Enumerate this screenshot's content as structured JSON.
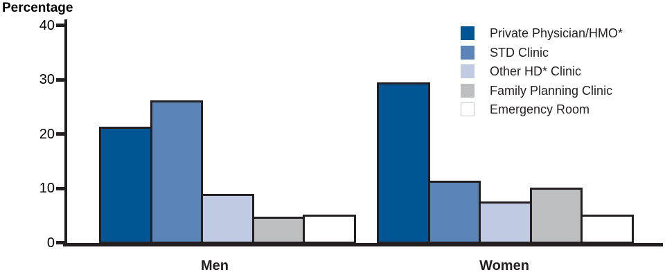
{
  "page": {
    "heading": "Percentage"
  },
  "chart_data": {
    "type": "bar",
    "title": "",
    "ylabel": "Percentage",
    "xlabel": "",
    "categories": [
      "Men",
      "Women"
    ],
    "series": [
      {
        "name": "Private Physician/HMO*",
        "color": "#005595",
        "values": [
          21.5,
          29.7
        ]
      },
      {
        "name": "STD Clinic",
        "color": "#5B84B8",
        "values": [
          26.4,
          11.6
        ]
      },
      {
        "name": "Other HD* Clinic",
        "color": "#C0CBE3",
        "values": [
          9.2,
          7.8
        ]
      },
      {
        "name": "Family Planning Clinic",
        "color": "#BCBEC0",
        "values": [
          5.0,
          10.3
        ]
      },
      {
        "name": "Emergency Room",
        "color": "#FFFFFF",
        "values": [
          5.4,
          5.3
        ]
      }
    ],
    "ylim": [
      0,
      40
    ],
    "yticks": [
      0,
      10,
      20,
      30,
      40
    ],
    "grid": false,
    "legend_position": "top-right",
    "colors": {
      "axis": "#231F20",
      "bar_border": "#231F20",
      "text": "#231F20",
      "white_swatch_border": "#C4C6C8"
    }
  }
}
